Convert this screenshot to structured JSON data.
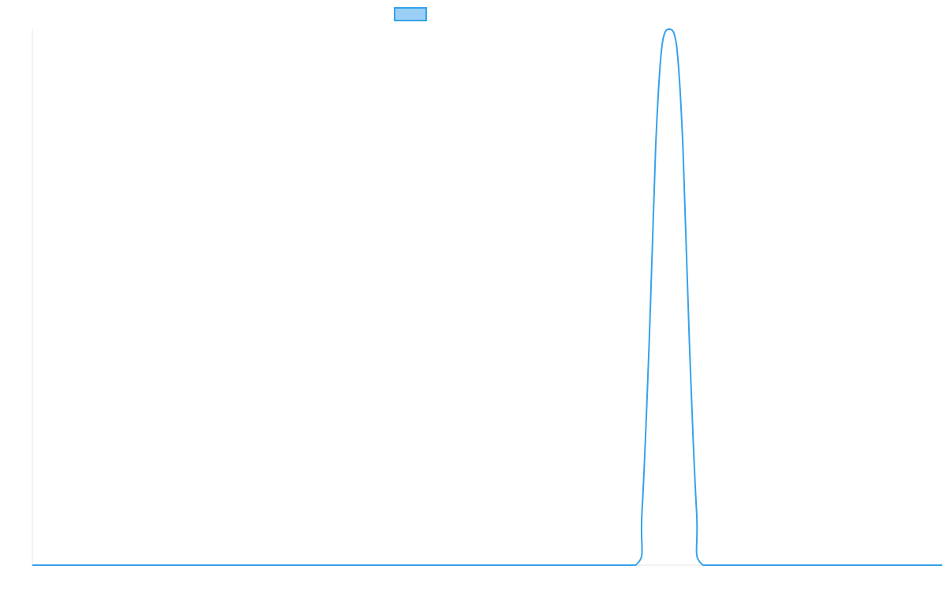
{
  "chart_data": {
    "type": "line",
    "title": "",
    "xlabel": "",
    "ylabel": "",
    "x": [
      0,
      10,
      20,
      30,
      40,
      50,
      60,
      66.3,
      67.0,
      67.8,
      68.5,
      69.2,
      70.0,
      70.8,
      71.5,
      72.2,
      73.0,
      73.7,
      80,
      90,
      100
    ],
    "xlim": [
      0,
      100
    ],
    "ylim": [
      0,
      1
    ],
    "series": [
      {
        "name": "",
        "color": "#36a2eb",
        "fill": "#9ad0f5",
        "values": [
          0,
          0,
          0,
          0,
          0,
          0,
          0,
          0,
          0.1,
          0.42,
          0.78,
          0.97,
          1.0,
          0.97,
          0.78,
          0.42,
          0.1,
          0,
          0,
          0,
          0
        ]
      }
    ],
    "legend": {
      "position": "top",
      "swatch_fill": "#9ad0f5",
      "swatch_stroke": "#36a2eb"
    },
    "grid": false
  }
}
